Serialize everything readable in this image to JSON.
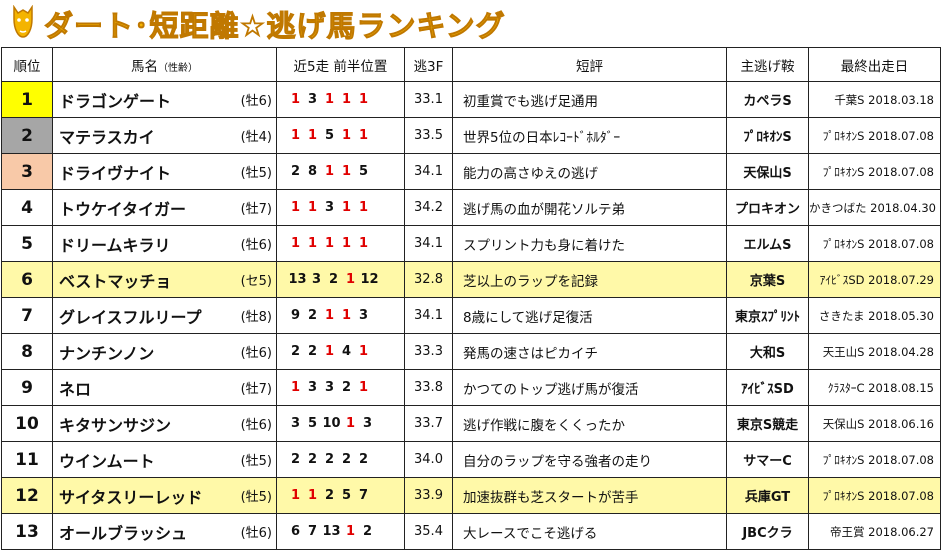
{
  "title": "ダート･短距離☆逃げ馬ランキング",
  "colors": {
    "title": "#f4b400",
    "highlight_row": "#fff9a8",
    "rank1": "#ffff00",
    "rank2": "#a6a6a6",
    "rank3": "#f8c9a8",
    "top_position": "#e00000"
  },
  "headers": {
    "rank": "順位",
    "name": "馬名",
    "name_sub": "（性齢）",
    "positions": "近5走 前半位置",
    "f3": "逃3F",
    "note": "短評",
    "race": "主逃げ鞍",
    "date": "最終出走日"
  },
  "rows": [
    {
      "rank": "1",
      "name": "ドラゴンゲート",
      "sex_age": "(牡6)",
      "positions": [
        "1",
        "3",
        "1",
        "1",
        "1"
      ],
      "f3": "33.1",
      "note": "初重賞でも逃げ足通用",
      "race": "カペラS",
      "date": "千葉S 2018.03.18",
      "highlight": false
    },
    {
      "rank": "2",
      "name": "マテラスカイ",
      "sex_age": "(牡4)",
      "positions": [
        "1",
        "1",
        "5",
        "1",
        "1"
      ],
      "f3": "33.5",
      "note": "世界5位の日本ﾚｺｰﾄﾞﾎﾙﾀﾞｰ",
      "race": "ﾌﾟﾛｷｵﾝS",
      "date": "ﾌﾟﾛｷｵﾝS 2018.07.08",
      "highlight": false
    },
    {
      "rank": "3",
      "name": "ドライヴナイト",
      "sex_age": "(牡5)",
      "positions": [
        "2",
        "8",
        "1",
        "1",
        "5"
      ],
      "f3": "34.1",
      "note": "能力の高さゆえの逃げ",
      "race": "天保山S",
      "date": "ﾌﾟﾛｷｵﾝS 2018.07.08",
      "highlight": false
    },
    {
      "rank": "4",
      "name": "トウケイタイガー",
      "sex_age": "(牡7)",
      "positions": [
        "1",
        "1",
        "3",
        "1",
        "1"
      ],
      "f3": "34.2",
      "note": "逃げ馬の血が開花ソルテ弟",
      "race": "プロキオン",
      "date": "かきつばた 2018.04.30",
      "highlight": false
    },
    {
      "rank": "5",
      "name": "ドリームキラリ",
      "sex_age": "(牡6)",
      "positions": [
        "1",
        "1",
        "1",
        "1",
        "1"
      ],
      "f3": "34.1",
      "note": "スプリント力も身に着けた",
      "race": "エルムS",
      "date": "ﾌﾟﾛｷｵﾝS 2018.07.08",
      "highlight": false
    },
    {
      "rank": "6",
      "name": "ベストマッチョ",
      "sex_age": "(セ5)",
      "positions": [
        "13",
        "3",
        "2",
        "1",
        "12"
      ],
      "f3": "32.8",
      "note": "芝以上のラップを記録",
      "race": "京葉S",
      "date": "ｱｲﾋﾞｽSD 2018.07.29",
      "highlight": true
    },
    {
      "rank": "7",
      "name": "グレイスフルリープ",
      "sex_age": "(牡8)",
      "positions": [
        "9",
        "2",
        "1",
        "1",
        "3"
      ],
      "f3": "34.1",
      "note": "8歳にして逃げ足復活",
      "race": "東京ｽﾌﾟﾘﾝﾄ",
      "date": "さきたま 2018.05.30",
      "highlight": false
    },
    {
      "rank": "8",
      "name": "ナンチンノン",
      "sex_age": "(牡6)",
      "positions": [
        "2",
        "2",
        "1",
        "4",
        "1"
      ],
      "f3": "33.3",
      "note": "発馬の速さはピカイチ",
      "race": "大和S",
      "date": "天王山S 2018.04.28",
      "highlight": false
    },
    {
      "rank": "9",
      "name": "ネロ",
      "sex_age": "(牡7)",
      "positions": [
        "1",
        "3",
        "3",
        "2",
        "1"
      ],
      "f3": "33.8",
      "note": "かつてのトップ逃げ馬が復活",
      "race": "ｱｲﾋﾞｽSD",
      "date": "ｸﾗｽﾀｰC 2018.08.15",
      "highlight": false
    },
    {
      "rank": "10",
      "name": "キタサンサジン",
      "sex_age": "(牡6)",
      "positions": [
        "3",
        "5",
        "10",
        "1",
        "3"
      ],
      "f3": "33.7",
      "note": "逃げ作戦に腹をくくったか",
      "race": "東京S競走",
      "date": "天保山S 2018.06.16",
      "highlight": false
    },
    {
      "rank": "11",
      "name": "ウインムート",
      "sex_age": "(牡5)",
      "positions": [
        "2",
        "2",
        "2",
        "2",
        "2"
      ],
      "f3": "34.0",
      "note": "自分のラップを守る強者の走り",
      "race": "サマーC",
      "date": "ﾌﾟﾛｷｵﾝS 2018.07.08",
      "highlight": false
    },
    {
      "rank": "12",
      "name": "サイタスリーレッド",
      "sex_age": "(牡5)",
      "positions": [
        "1",
        "1",
        "2",
        "5",
        "7"
      ],
      "f3": "33.9",
      "note": "加速抜群も芝スタートが苦手",
      "race": "兵庫GT",
      "date": "ﾌﾟﾛｷｵﾝS 2018.07.08",
      "highlight": true
    },
    {
      "rank": "13",
      "name": "オールブラッシュ",
      "sex_age": "(牡6)",
      "positions": [
        "6",
        "7",
        "13",
        "1",
        "2"
      ],
      "f3": "35.4",
      "note": "大レースでこそ逃げる",
      "race": "JBCクラ",
      "date": "帝王賞 2018.06.27",
      "highlight": false
    }
  ]
}
